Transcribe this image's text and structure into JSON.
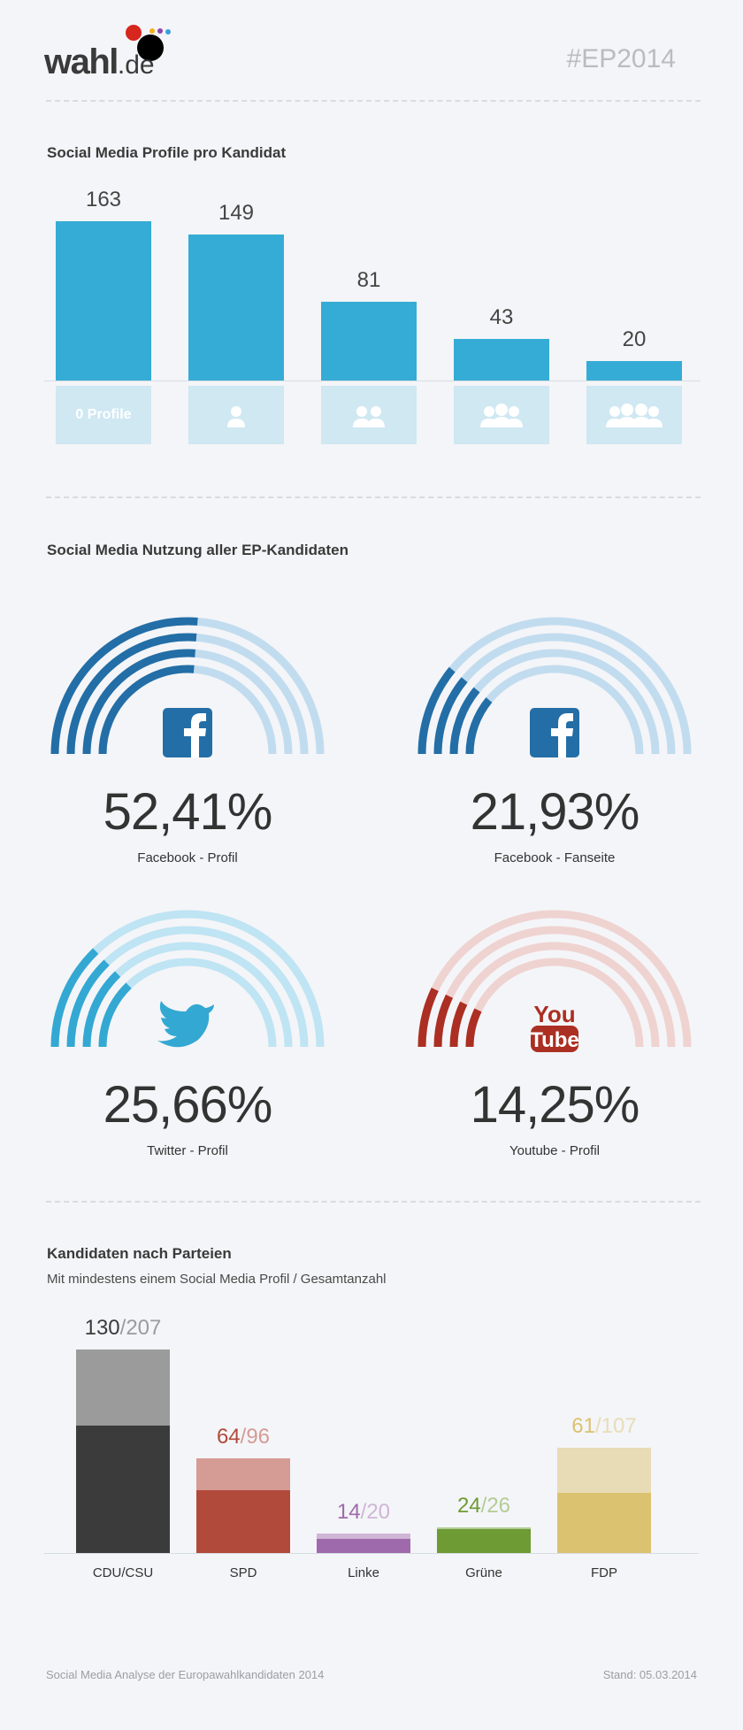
{
  "header": {
    "logo_name": "wahl",
    "logo_tld": ".de",
    "logo_dot_colors": [
      "#d7261e",
      "#000000",
      "#f2b01e",
      "#8e44ad",
      "#3aa0d8"
    ],
    "hashtag": "#EP2014"
  },
  "section1": {
    "title": "Social Media Profile pro Kandidat",
    "first_tile_label": "0 Profile"
  },
  "section2": {
    "title": "Social Media Nutzung aller EP-Kandidaten"
  },
  "section3": {
    "title": "Kandidaten nach Parteien",
    "subtitle": "Mit mindestens einem Social Media Profil / Gesamtanzahl"
  },
  "footer": {
    "left": "Social Media Analyse der Europawahlkandidaten 2014",
    "right": "Stand: 05.03.2014"
  },
  "chart_data": [
    {
      "type": "bar",
      "title": "Social Media Profile pro Kandidat",
      "categories": [
        "0 Profile",
        "1 Profil",
        "2 Profile",
        "3 Profile",
        "4 Profile"
      ],
      "category_icons": [
        "none",
        "person-icon",
        "two-people-icon",
        "three-people-icon",
        "group-icon"
      ],
      "values": [
        163,
        149,
        81,
        43,
        20
      ],
      "color": "#35acd5",
      "tile_color": "#cfe8f2",
      "ylim": [
        0,
        170
      ]
    },
    {
      "type": "gauge",
      "title": "Social Media Nutzung aller EP-Kandidaten",
      "items": [
        {
          "value": 52.41,
          "label": "52,41%",
          "caption": "Facebook - Profil",
          "icon": "facebook-icon",
          "color": "#236ea6",
          "light": "#c2dcef"
        },
        {
          "value": 21.93,
          "label": "21,93%",
          "caption": "Facebook - Fanseite",
          "icon": "facebook-icon",
          "color": "#236ea6",
          "light": "#c2dcef"
        },
        {
          "value": 25.66,
          "label": "25,66%",
          "caption": "Twitter - Profil",
          "icon": "twitter-icon",
          "color": "#33a8d3",
          "light": "#bfe4f3"
        },
        {
          "value": 14.25,
          "label": "14,25%",
          "caption": "Youtube - Profil",
          "icon": "youtube-icon",
          "color": "#ab2f22",
          "light": "#efd3d1",
          "icon_text_top": "You",
          "icon_text_bottom": "Tube"
        }
      ]
    },
    {
      "type": "bar",
      "title": "Kandidaten nach Parteien",
      "subtitle": "Mit mindestens einem Social Media Profil / Gesamtanzahl",
      "categories": [
        "CDU/CSU",
        "SPD",
        "Linke",
        "Grüne",
        "FDP"
      ],
      "series": [
        {
          "values": [
            130,
            64,
            14,
            24,
            61
          ]
        },
        {
          "values": [
            207,
            96,
            20,
            26,
            107
          ]
        }
      ],
      "colors": [
        "#3b3b3b",
        "#b24a3c",
        "#9f6aab",
        "#6e9b34",
        "#dbc270"
      ],
      "light_colors": [
        "#9b9b9b",
        "#d59c95",
        "#cfb6d6",
        "#b3cc96",
        "#e8dcb7"
      ],
      "ylim": [
        0,
        207
      ]
    }
  ]
}
